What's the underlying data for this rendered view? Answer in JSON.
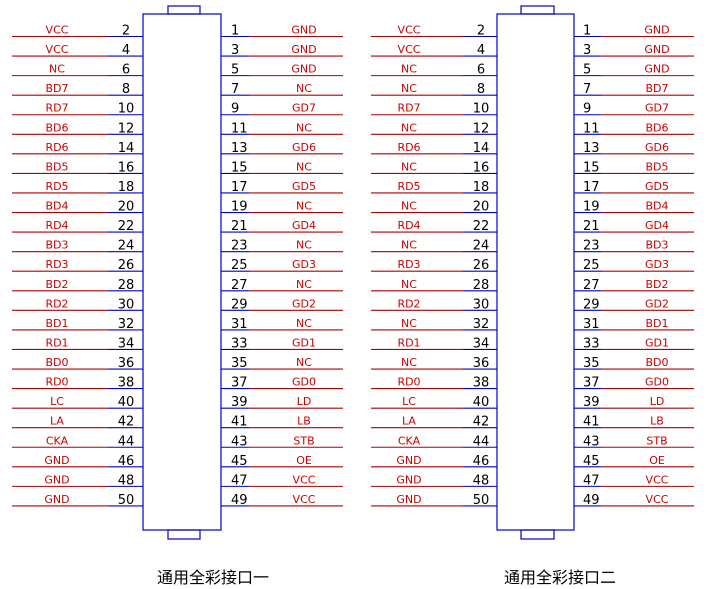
{
  "connectors": [
    {
      "title": "通用全彩接口一",
      "pins": [
        {
          "left_signal": "VCC",
          "left_pin": "2",
          "right_pin": "1",
          "right_signal": "GND"
        },
        {
          "left_signal": "VCC",
          "left_pin": "4",
          "right_pin": "3",
          "right_signal": "GND"
        },
        {
          "left_signal": "NC",
          "left_pin": "6",
          "right_pin": "5",
          "right_signal": "GND"
        },
        {
          "left_signal": "BD7",
          "left_pin": "8",
          "right_pin": "7",
          "right_signal": "NC"
        },
        {
          "left_signal": "RD7",
          "left_pin": "10",
          "right_pin": "9",
          "right_signal": "GD7"
        },
        {
          "left_signal": "BD6",
          "left_pin": "12",
          "right_pin": "11",
          "right_signal": "NC"
        },
        {
          "left_signal": "RD6",
          "left_pin": "14",
          "right_pin": "13",
          "right_signal": "GD6"
        },
        {
          "left_signal": "BD5",
          "left_pin": "16",
          "right_pin": "15",
          "right_signal": "NC"
        },
        {
          "left_signal": "RD5",
          "left_pin": "18",
          "right_pin": "17",
          "right_signal": "GD5"
        },
        {
          "left_signal": "BD4",
          "left_pin": "20",
          "right_pin": "19",
          "right_signal": "NC"
        },
        {
          "left_signal": "RD4",
          "left_pin": "22",
          "right_pin": "21",
          "right_signal": "GD4"
        },
        {
          "left_signal": "BD3",
          "left_pin": "24",
          "right_pin": "23",
          "right_signal": "NC"
        },
        {
          "left_signal": "RD3",
          "left_pin": "26",
          "right_pin": "25",
          "right_signal": "GD3"
        },
        {
          "left_signal": "BD2",
          "left_pin": "28",
          "right_pin": "27",
          "right_signal": "NC"
        },
        {
          "left_signal": "RD2",
          "left_pin": "30",
          "right_pin": "29",
          "right_signal": "GD2"
        },
        {
          "left_signal": "BD1",
          "left_pin": "32",
          "right_pin": "31",
          "right_signal": "NC"
        },
        {
          "left_signal": "RD1",
          "left_pin": "34",
          "right_pin": "33",
          "right_signal": "GD1"
        },
        {
          "left_signal": "BD0",
          "left_pin": "36",
          "right_pin": "35",
          "right_signal": "NC"
        },
        {
          "left_signal": "RD0",
          "left_pin": "38",
          "right_pin": "37",
          "right_signal": "GD0"
        },
        {
          "left_signal": "LC",
          "left_pin": "40",
          "right_pin": "39",
          "right_signal": "LD"
        },
        {
          "left_signal": "LA",
          "left_pin": "42",
          "right_pin": "41",
          "right_signal": "LB"
        },
        {
          "left_signal": "CKA",
          "left_pin": "44",
          "right_pin": "43",
          "right_signal": "STB"
        },
        {
          "left_signal": "GND",
          "left_pin": "46",
          "right_pin": "45",
          "right_signal": "OE"
        },
        {
          "left_signal": "GND",
          "left_pin": "48",
          "right_pin": "47",
          "right_signal": "VCC"
        },
        {
          "left_signal": "GND",
          "left_pin": "50",
          "right_pin": "49",
          "right_signal": "VCC"
        }
      ]
    },
    {
      "title": "通用全彩接口二",
      "pins": [
        {
          "left_signal": "VCC",
          "left_pin": "2",
          "right_pin": "1",
          "right_signal": "GND"
        },
        {
          "left_signal": "VCC",
          "left_pin": "4",
          "right_pin": "3",
          "right_signal": "GND"
        },
        {
          "left_signal": "NC",
          "left_pin": "6",
          "right_pin": "5",
          "right_signal": "GND"
        },
        {
          "left_signal": "NC",
          "left_pin": "8",
          "right_pin": "7",
          "right_signal": "BD7"
        },
        {
          "left_signal": "RD7",
          "left_pin": "10",
          "right_pin": "9",
          "right_signal": "GD7"
        },
        {
          "left_signal": "NC",
          "left_pin": "12",
          "right_pin": "11",
          "right_signal": "BD6"
        },
        {
          "left_signal": "RD6",
          "left_pin": "14",
          "right_pin": "13",
          "right_signal": "GD6"
        },
        {
          "left_signal": "NC",
          "left_pin": "16",
          "right_pin": "15",
          "right_signal": "BD5"
        },
        {
          "left_signal": "RD5",
          "left_pin": "18",
          "right_pin": "17",
          "right_signal": "GD5"
        },
        {
          "left_signal": "NC",
          "left_pin": "20",
          "right_pin": "19",
          "right_signal": "BD4"
        },
        {
          "left_signal": "RD4",
          "left_pin": "22",
          "right_pin": "21",
          "right_signal": "GD4"
        },
        {
          "left_signal": "NC",
          "left_pin": "24",
          "right_pin": "23",
          "right_signal": "BD3"
        },
        {
          "left_signal": "RD3",
          "left_pin": "26",
          "right_pin": "25",
          "right_signal": "GD3"
        },
        {
          "left_signal": "NC",
          "left_pin": "28",
          "right_pin": "27",
          "right_signal": "BD2"
        },
        {
          "left_signal": "RD2",
          "left_pin": "30",
          "right_pin": "29",
          "right_signal": "GD2"
        },
        {
          "left_signal": "NC",
          "left_pin": "32",
          "right_pin": "31",
          "right_signal": "BD1"
        },
        {
          "left_signal": "RD1",
          "left_pin": "34",
          "right_pin": "33",
          "right_signal": "GD1"
        },
        {
          "left_signal": "NC",
          "left_pin": "36",
          "right_pin": "35",
          "right_signal": "BD0"
        },
        {
          "left_signal": "RD0",
          "left_pin": "38",
          "right_pin": "37",
          "right_signal": "GD0"
        },
        {
          "left_signal": "LC",
          "left_pin": "40",
          "right_pin": "39",
          "right_signal": "LD"
        },
        {
          "left_signal": "LA",
          "left_pin": "42",
          "right_pin": "41",
          "right_signal": "LB"
        },
        {
          "left_signal": "CKA",
          "left_pin": "44",
          "right_pin": "43",
          "right_signal": "STB"
        },
        {
          "left_signal": "GND",
          "left_pin": "46",
          "right_pin": "45",
          "right_signal": "OE"
        },
        {
          "left_signal": "GND",
          "left_pin": "48",
          "right_pin": "47",
          "right_signal": "VCC"
        },
        {
          "left_signal": "GND",
          "left_pin": "50",
          "right_pin": "49",
          "right_signal": "VCC"
        }
      ]
    }
  ],
  "colors": {
    "signal_text": "#cc0000",
    "signal_line": "#b00000",
    "pin_line": "#0000cc",
    "connector_outline": "#0000cc",
    "pin_number_text": "#000000",
    "title_text": "#000000"
  }
}
